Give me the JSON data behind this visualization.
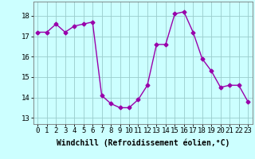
{
  "x": [
    0,
    1,
    2,
    3,
    4,
    5,
    6,
    7,
    8,
    9,
    10,
    11,
    12,
    13,
    14,
    15,
    16,
    17,
    18,
    19,
    20,
    21,
    22,
    23
  ],
  "y": [
    17.2,
    17.2,
    17.6,
    17.2,
    17.5,
    17.6,
    17.7,
    14.1,
    13.7,
    13.5,
    13.5,
    13.9,
    14.6,
    16.6,
    16.6,
    18.1,
    18.2,
    17.2,
    15.9,
    15.3,
    14.5,
    14.6,
    14.6,
    13.8
  ],
  "line_color": "#9900aa",
  "marker": "D",
  "markersize": 2.5,
  "linewidth": 1.0,
  "bg_color": "#ccffff",
  "grid_color": "#99cccc",
  "xlabel": "Windchill (Refroidissement éolien,°C)",
  "xlabel_fontsize": 7.0,
  "xtick_labels": [
    "0",
    "1",
    "2",
    "3",
    "4",
    "5",
    "6",
    "7",
    "8",
    "9",
    "10",
    "11",
    "12",
    "13",
    "14",
    "15",
    "16",
    "17",
    "18",
    "19",
    "20",
    "21",
    "22",
    "23"
  ],
  "ytick_vals": [
    13,
    14,
    15,
    16,
    17,
    18
  ],
  "ytick_labels": [
    "13",
    "14",
    "15",
    "16",
    "17",
    "18"
  ],
  "ylim": [
    12.7,
    18.7
  ],
  "xlim": [
    -0.5,
    23.5
  ],
  "tick_fontsize": 6.5
}
